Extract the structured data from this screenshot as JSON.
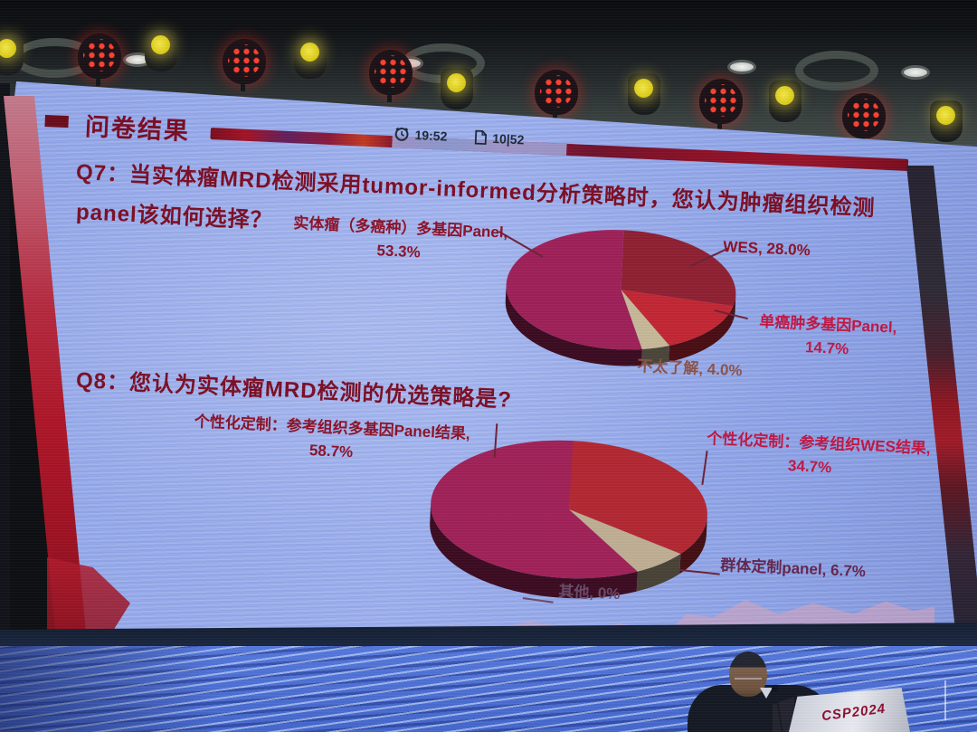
{
  "header": {
    "title": "问卷结果"
  },
  "timer": {
    "time": "19:52",
    "page": "10|52"
  },
  "q7": {
    "title_line1": "Q7：当实体瘤MRD检测采用tumor-informed分析策略时，您认为肿瘤组织检测",
    "title_line2": "panel该如何选择？",
    "callouts": {
      "multi_panel": {
        "name": "实体瘤（多癌种）多基因Panel,",
        "pct": "53.3%"
      },
      "wes": "WES, 28.0%",
      "single_panel": {
        "name": "单癌肿多基因Panel,",
        "pct": "14.7%"
      },
      "unknown": "不太了解, 4.0%"
    }
  },
  "q8": {
    "title": "Q8：您认为实体瘤MRD检测的优选策略是?",
    "callouts": {
      "panel_based": {
        "name": "个性化定制：参考组织多基因Panel结果,",
        "pct": "58.7%"
      },
      "wes_based": {
        "name": "个性化定制：参考组织WES结果,",
        "pct": "34.7%"
      },
      "group_panel": "群体定制panel, 6.7%",
      "other": "其他, 0%"
    }
  },
  "chart_data": [
    {
      "type": "pie",
      "question": "Q7",
      "title": "当实体瘤MRD检测采用tumor-informed分析策略时，您认为肿瘤组织检测panel该如何选择？",
      "legend_position": "callouts",
      "start_angle_deg": 0,
      "direction": "clockwise",
      "slices": [
        {
          "label": "WES",
          "value": 28.0,
          "color": "#8f2132"
        },
        {
          "label": "单癌肿多基因Panel",
          "value": 14.7,
          "color": "#c22733"
        },
        {
          "label": "不太了解",
          "value": 4.0,
          "color": "#c6b897"
        },
        {
          "label": "实体瘤（多癌种）多基因Panel",
          "value": 53.3,
          "color": "#9e2158"
        }
      ]
    },
    {
      "type": "pie",
      "question": "Q8",
      "title": "您认为实体瘤MRD检测的优选策略是?",
      "legend_position": "callouts",
      "start_angle_deg": 0,
      "direction": "clockwise",
      "slices": [
        {
          "label": "个性化定制：参考组织WES结果",
          "value": 34.7,
          "color": "#b22832"
        },
        {
          "label": "群体定制panel",
          "value": 6.7,
          "color": "#bfae93"
        },
        {
          "label": "其他",
          "value": 0.0,
          "color": "#888888"
        },
        {
          "label": "个性化定制：参考组织多基因Panel结果",
          "value": 58.7,
          "color": "#a02258"
        }
      ]
    }
  ],
  "podium": {
    "sign": "CSP2024"
  }
}
